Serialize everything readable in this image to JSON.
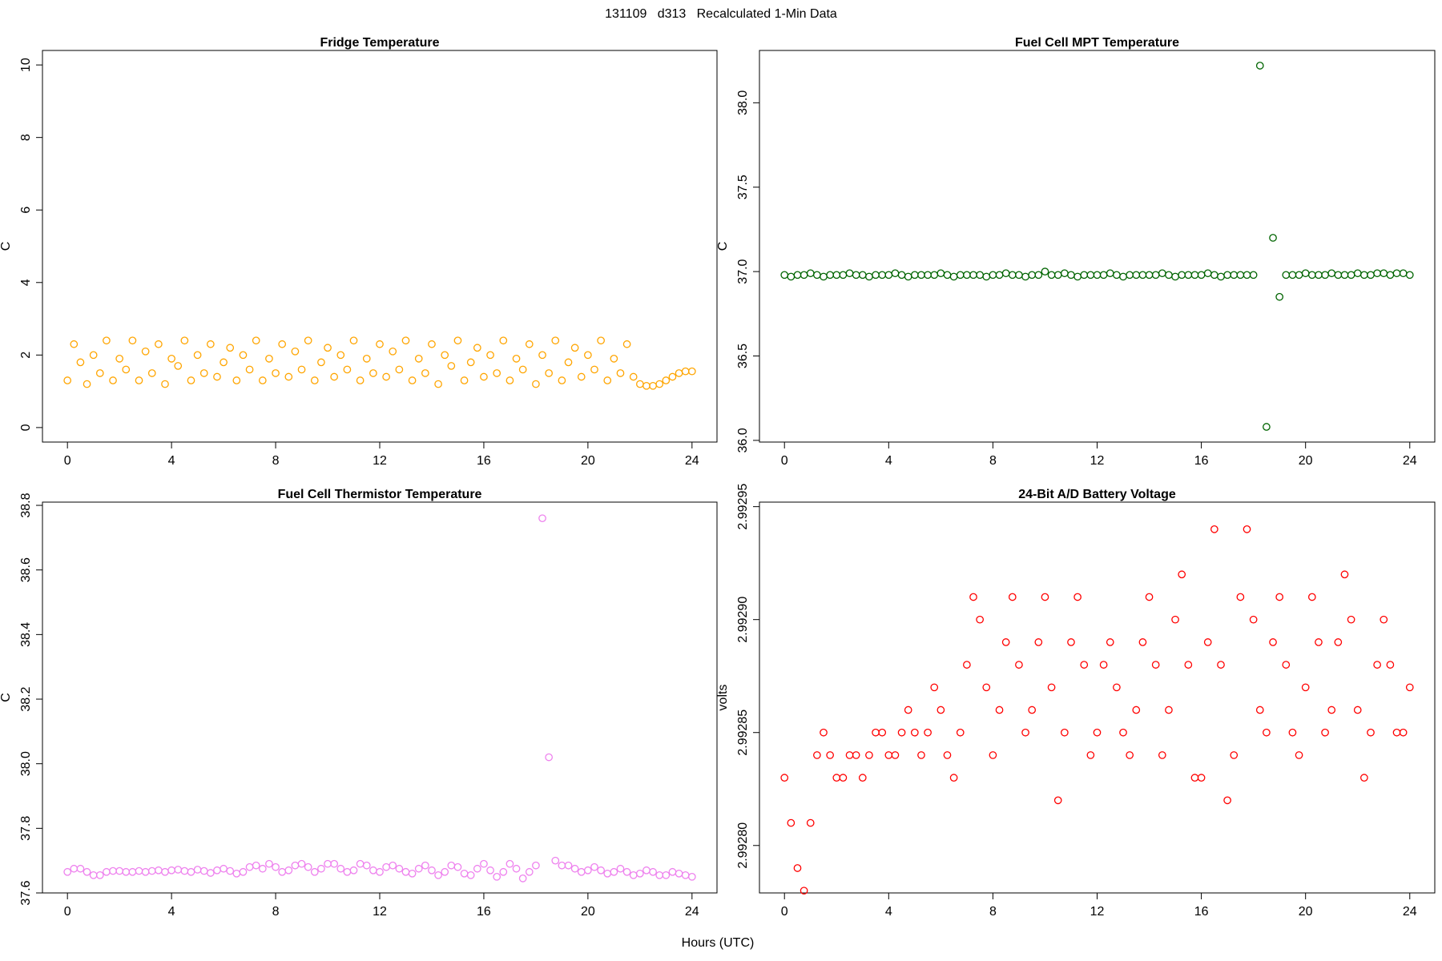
{
  "title": "131109   d313   Recalculated 1-Min Data",
  "xlabel": "Hours (UTC)",
  "chart_data": [
    {
      "type": "scatter",
      "title": "Fridge Temperature",
      "ylabel": "C",
      "color": "#FFA500",
      "x": [
        0,
        0.25,
        0.5,
        0.75,
        1,
        1.25,
        1.5,
        1.75,
        2,
        2.25,
        2.5,
        2.75,
        3,
        3.25,
        3.5,
        3.75,
        4,
        4.25,
        4.5,
        4.75,
        5,
        5.25,
        5.5,
        5.75,
        6,
        6.25,
        6.5,
        6.75,
        7,
        7.25,
        7.5,
        7.75,
        8,
        8.25,
        8.5,
        8.75,
        9,
        9.25,
        9.5,
        9.75,
        10,
        10.25,
        10.5,
        10.75,
        11,
        11.25,
        11.5,
        11.75,
        12,
        12.25,
        12.5,
        12.75,
        13,
        13.25,
        13.5,
        13.75,
        14,
        14.25,
        14.5,
        14.75,
        15,
        15.25,
        15.5,
        15.75,
        16,
        16.25,
        16.5,
        16.75,
        17,
        17.25,
        17.5,
        17.75,
        18,
        18.25,
        18.5,
        18.75,
        19,
        19.25,
        19.5,
        19.75,
        20,
        20.25,
        20.5,
        20.75,
        21,
        21.25,
        21.5,
        21.75,
        22,
        22.25,
        22.5,
        22.75,
        23,
        23.25,
        23.5,
        23.75,
        24
      ],
      "values": [
        1.3,
        2.3,
        1.8,
        1.2,
        2.0,
        1.5,
        2.4,
        1.3,
        1.9,
        1.6,
        2.4,
        1.3,
        2.1,
        1.5,
        2.3,
        1.2,
        1.9,
        1.7,
        2.4,
        1.3,
        2.0,
        1.5,
        2.3,
        1.4,
        1.8,
        2.2,
        1.3,
        2.0,
        1.6,
        2.4,
        1.3,
        1.9,
        1.5,
        2.3,
        1.4,
        2.1,
        1.6,
        2.4,
        1.3,
        1.8,
        2.2,
        1.4,
        2.0,
        1.6,
        2.4,
        1.3,
        1.9,
        1.5,
        2.3,
        1.4,
        2.1,
        1.6,
        2.4,
        1.3,
        1.9,
        1.5,
        2.3,
        1.2,
        2.0,
        1.7,
        2.4,
        1.3,
        1.8,
        2.2,
        1.4,
        2.0,
        1.5,
        2.4,
        1.3,
        1.9,
        1.6,
        2.3,
        1.2,
        2.0,
        1.5,
        2.4,
        1.3,
        1.8,
        2.2,
        1.4,
        2.0,
        1.6,
        2.4,
        1.3,
        1.9,
        1.5,
        2.3,
        1.4,
        1.2,
        1.15,
        1.15,
        1.2,
        1.3,
        1.4,
        1.5,
        1.55,
        1.55
      ],
      "xlim": [
        -0.96,
        24.96
      ],
      "xticks": [
        0,
        4,
        8,
        12,
        16,
        20,
        24
      ],
      "ylim": [
        -0.4,
        10.4
      ],
      "yticks": [
        0,
        2,
        4,
        6,
        8,
        10
      ]
    },
    {
      "type": "scatter",
      "title": "Fuel Cell MPT Temperature",
      "ylabel": "C",
      "color": "#006400",
      "x": [
        0,
        0.25,
        0.5,
        0.75,
        1,
        1.25,
        1.5,
        1.75,
        2,
        2.25,
        2.5,
        2.75,
        3,
        3.25,
        3.5,
        3.75,
        4,
        4.25,
        4.5,
        4.75,
        5,
        5.25,
        5.5,
        5.75,
        6,
        6.25,
        6.5,
        6.75,
        7,
        7.25,
        7.5,
        7.75,
        8,
        8.25,
        8.5,
        8.75,
        9,
        9.25,
        9.5,
        9.75,
        10,
        10.25,
        10.5,
        10.75,
        11,
        11.25,
        11.5,
        11.75,
        12,
        12.25,
        12.5,
        12.75,
        13,
        13.25,
        13.5,
        13.75,
        14,
        14.25,
        14.5,
        14.75,
        15,
        15.25,
        15.5,
        15.75,
        16,
        16.25,
        16.5,
        16.75,
        17,
        17.25,
        17.5,
        17.75,
        18,
        18.25,
        18.5,
        18.75,
        19,
        19.25,
        19.5,
        19.75,
        20,
        20.25,
        20.5,
        20.75,
        21,
        21.25,
        21.5,
        21.75,
        22,
        22.25,
        22.5,
        22.75,
        23,
        23.25,
        23.5,
        23.75,
        24
      ],
      "values": [
        36.98,
        36.97,
        36.98,
        36.98,
        36.99,
        36.98,
        36.97,
        36.98,
        36.98,
        36.98,
        36.99,
        36.98,
        36.98,
        36.97,
        36.98,
        36.98,
        36.98,
        36.99,
        36.98,
        36.97,
        36.98,
        36.98,
        36.98,
        36.98,
        36.99,
        36.98,
        36.97,
        36.98,
        36.98,
        36.98,
        36.98,
        36.97,
        36.98,
        36.98,
        36.99,
        36.98,
        36.98,
        36.97,
        36.98,
        36.98,
        37.0,
        36.98,
        36.98,
        36.99,
        36.98,
        36.97,
        36.98,
        36.98,
        36.98,
        36.98,
        36.99,
        36.98,
        36.97,
        36.98,
        36.98,
        36.98,
        36.98,
        36.98,
        36.99,
        36.98,
        36.97,
        36.98,
        36.98,
        36.98,
        36.98,
        36.99,
        36.98,
        36.97,
        36.98,
        36.98,
        36.98,
        36.98,
        36.98,
        38.22,
        36.08,
        37.2,
        36.85,
        36.98,
        36.98,
        36.98,
        36.99,
        36.98,
        36.98,
        36.98,
        36.99,
        36.98,
        36.98,
        36.98,
        36.99,
        36.98,
        36.98,
        36.99,
        36.99,
        36.98,
        36.99,
        36.99,
        36.98
      ],
      "xlim": [
        -0.96,
        24.96
      ],
      "xticks": [
        0,
        4,
        8,
        12,
        16,
        20,
        24
      ],
      "ylim": [
        35.99,
        38.31
      ],
      "yticks": [
        {
          "value": 36,
          "label": "36.0"
        },
        36.5,
        {
          "value": 37,
          "label": "37.0"
        },
        37.5,
        {
          "value": 38,
          "label": "38.0"
        }
      ]
    },
    {
      "type": "scatter",
      "title": "Fuel Cell Thermistor Temperature",
      "ylabel": "C",
      "color": "#EE82EE",
      "x": [
        0,
        0.25,
        0.5,
        0.75,
        1,
        1.25,
        1.5,
        1.75,
        2,
        2.25,
        2.5,
        2.75,
        3,
        3.25,
        3.5,
        3.75,
        4,
        4.25,
        4.5,
        4.75,
        5,
        5.25,
        5.5,
        5.75,
        6,
        6.25,
        6.5,
        6.75,
        7,
        7.25,
        7.5,
        7.75,
        8,
        8.25,
        8.5,
        8.75,
        9,
        9.25,
        9.5,
        9.75,
        10,
        10.25,
        10.5,
        10.75,
        11,
        11.25,
        11.5,
        11.75,
        12,
        12.25,
        12.5,
        12.75,
        13,
        13.25,
        13.5,
        13.75,
        14,
        14.25,
        14.5,
        14.75,
        15,
        15.25,
        15.5,
        15.75,
        16,
        16.25,
        16.5,
        16.75,
        17,
        17.25,
        17.5,
        17.75,
        18,
        18.25,
        18.5,
        18.75,
        19,
        19.25,
        19.5,
        19.75,
        20,
        20.25,
        20.5,
        20.75,
        21,
        21.25,
        21.5,
        21.75,
        22,
        22.25,
        22.5,
        22.75,
        23,
        23.25,
        23.5,
        23.75,
        24
      ],
      "values": [
        37.665,
        37.675,
        37.675,
        37.665,
        37.655,
        37.655,
        37.665,
        37.668,
        37.668,
        37.665,
        37.665,
        37.668,
        37.665,
        37.668,
        37.67,
        37.665,
        37.67,
        37.672,
        37.668,
        37.665,
        37.672,
        37.668,
        37.662,
        37.67,
        37.675,
        37.668,
        37.66,
        37.665,
        37.68,
        37.685,
        37.675,
        37.69,
        37.68,
        37.665,
        37.67,
        37.685,
        37.69,
        37.68,
        37.665,
        37.675,
        37.69,
        37.69,
        37.675,
        37.665,
        37.67,
        37.69,
        37.685,
        37.67,
        37.665,
        37.68,
        37.685,
        37.675,
        37.665,
        37.66,
        37.675,
        37.685,
        37.67,
        37.655,
        37.665,
        37.685,
        37.68,
        37.66,
        37.655,
        37.675,
        37.69,
        37.67,
        37.65,
        37.665,
        37.69,
        37.675,
        37.645,
        37.665,
        37.685,
        38.76,
        38.02,
        37.7,
        37.685,
        37.685,
        37.675,
        37.665,
        37.67,
        37.68,
        37.67,
        37.66,
        37.665,
        37.675,
        37.665,
        37.655,
        37.66,
        37.67,
        37.665,
        37.655,
        37.655,
        37.665,
        37.66,
        37.655,
        37.65
      ],
      "xlim": [
        -0.96,
        24.96
      ],
      "xticks": [
        0,
        4,
        8,
        12,
        16,
        20,
        24
      ],
      "ylim": [
        37.6,
        38.81
      ],
      "yticks": [
        37.6,
        37.8,
        {
          "value": 38,
          "label": "38.0"
        },
        38.2,
        38.4,
        38.6,
        38.8
      ]
    },
    {
      "type": "scatter",
      "title": "24-Bit A/D Battery Voltage",
      "ylabel": "volts",
      "color": "#FF0000",
      "x": [
        0,
        0.25,
        0.5,
        0.75,
        1,
        1.25,
        1.5,
        1.75,
        2,
        2.25,
        2.5,
        2.75,
        3,
        3.25,
        3.5,
        3.75,
        4,
        4.25,
        4.5,
        4.75,
        5,
        5.25,
        5.5,
        5.75,
        6,
        6.25,
        6.5,
        6.75,
        7,
        7.25,
        7.5,
        7.75,
        8,
        8.25,
        8.5,
        8.75,
        9,
        9.25,
        9.5,
        9.75,
        10,
        10.25,
        10.5,
        10.75,
        11,
        11.25,
        11.5,
        11.75,
        12,
        12.25,
        12.5,
        12.75,
        13,
        13.25,
        13.5,
        13.75,
        14,
        14.25,
        14.5,
        14.75,
        15,
        15.25,
        15.5,
        15.75,
        16,
        16.25,
        16.5,
        16.75,
        17,
        17.25,
        17.5,
        17.75,
        18,
        18.25,
        18.5,
        18.75,
        19,
        19.25,
        19.5,
        19.75,
        20,
        20.25,
        20.5,
        20.75,
        21,
        21.25,
        21.5,
        21.75,
        22,
        22.25,
        22.5,
        22.75,
        23,
        23.25,
        23.5,
        23.75,
        24
      ],
      "values": [
        2.99283,
        2.99281,
        2.99279,
        2.99278,
        2.99281,
        2.99284,
        2.99285,
        2.99284,
        2.99283,
        2.99283,
        2.99284,
        2.99284,
        2.99283,
        2.99284,
        2.99285,
        2.99285,
        2.99284,
        2.99284,
        2.99285,
        2.99286,
        2.99285,
        2.99284,
        2.99285,
        2.99287,
        2.99286,
        2.99284,
        2.99283,
        2.99285,
        2.99288,
        2.99291,
        2.9929,
        2.99287,
        2.99284,
        2.99286,
        2.99289,
        2.99291,
        2.99288,
        2.99285,
        2.99286,
        2.99289,
        2.99291,
        2.99287,
        2.99282,
        2.99285,
        2.99289,
        2.99291,
        2.99288,
        2.99284,
        2.99285,
        2.99288,
        2.99289,
        2.99287,
        2.99285,
        2.99284,
        2.99286,
        2.99289,
        2.99291,
        2.99288,
        2.99284,
        2.99286,
        2.9929,
        2.99292,
        2.99288,
        2.99283,
        2.99283,
        2.99289,
        2.99294,
        2.99288,
        2.99282,
        2.99284,
        2.99291,
        2.99294,
        2.9929,
        2.99286,
        2.99285,
        2.99289,
        2.99291,
        2.99288,
        2.99285,
        2.99284,
        2.99287,
        2.99291,
        2.99289,
        2.99285,
        2.99286,
        2.99289,
        2.99292,
        2.9929,
        2.99286,
        2.99283,
        2.99285,
        2.99288,
        2.9929,
        2.99288,
        2.99285,
        2.99285,
        2.99287
      ],
      "xlim": [
        -0.96,
        24.96
      ],
      "xticks": [
        0,
        4,
        8,
        12,
        16,
        20,
        24
      ],
      "ylim": [
        2.992779,
        2.992952
      ],
      "yticks": [
        {
          "value": 2.9928,
          "label": "2.99280"
        },
        {
          "value": 2.99285,
          "label": "2.99285"
        },
        {
          "value": 2.9929,
          "label": "2.99290"
        },
        {
          "value": 2.99295,
          "label": "2.99295"
        }
      ]
    }
  ]
}
